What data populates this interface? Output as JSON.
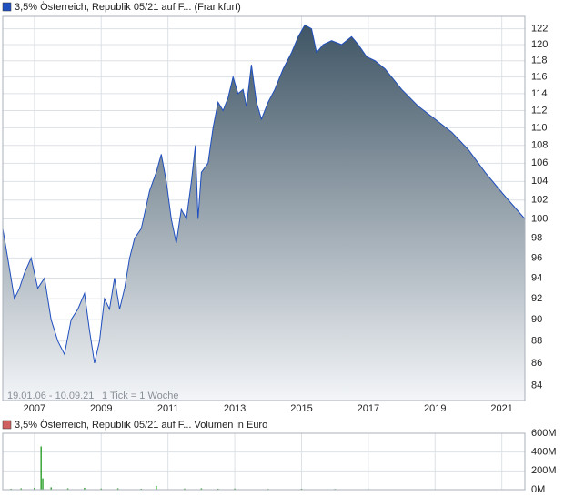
{
  "chart_data": [
    {
      "type": "area",
      "legend": "3,5% Österreich, Republik 05/21 auf F... (Frankfurt)",
      "footnote": "19.01.06 - 10.09.21",
      "tick_note": "1 Tick = 1 Woche",
      "log_scale": true,
      "grid": true,
      "xlim": [
        2006.05,
        2021.69
      ],
      "xticks": [
        2007,
        2009,
        2011,
        2013,
        2015,
        2017,
        2019,
        2021
      ],
      "ylim": [
        82.7,
        123.6
      ],
      "yticks": [
        84,
        86,
        88,
        90,
        92,
        94,
        96,
        98,
        100,
        102,
        104,
        106,
        108,
        110,
        112,
        114,
        116,
        118,
        120,
        122
      ],
      "x": [
        2006.05,
        2006.2,
        2006.4,
        2006.55,
        2006.7,
        2006.9,
        2007.1,
        2007.3,
        2007.5,
        2007.7,
        2007.9,
        2008.1,
        2008.3,
        2008.5,
        2008.65,
        2008.8,
        2008.95,
        2009.1,
        2009.25,
        2009.4,
        2009.55,
        2009.7,
        2009.85,
        2010.0,
        2010.2,
        2010.45,
        2010.65,
        2010.8,
        2010.95,
        2011.1,
        2011.25,
        2011.4,
        2011.55,
        2011.7,
        2011.82,
        2011.9,
        2012.0,
        2012.2,
        2012.35,
        2012.5,
        2012.65,
        2012.8,
        2012.95,
        2013.1,
        2013.25,
        2013.35,
        2013.5,
        2013.65,
        2013.8,
        2014.0,
        2014.2,
        2014.45,
        2014.7,
        2014.9,
        2015.1,
        2015.3,
        2015.45,
        2015.65,
        2015.9,
        2016.2,
        2016.5,
        2016.7,
        2016.95,
        2017.2,
        2017.5,
        2017.8,
        2018.0,
        2018.5,
        2019.0,
        2019.5,
        2020.0,
        2020.5,
        2021.0,
        2021.69
      ],
      "series": [
        {
          "name": "3,5% Österreich, Republik 05/21 auf F...",
          "color": "#1f4fbf",
          "values": [
            99,
            96,
            92,
            93,
            94.5,
            96,
            93,
            94,
            90,
            88,
            86.8,
            90,
            91,
            92.5,
            89,
            86,
            88,
            92,
            91,
            94,
            91,
            93,
            96,
            98,
            99,
            103,
            105,
            107,
            104,
            100,
            97.5,
            101,
            100,
            104,
            108,
            100,
            105,
            106,
            110,
            113,
            112,
            113.5,
            116,
            114,
            114.5,
            112.5,
            117.5,
            113,
            111,
            113,
            114.5,
            117,
            119,
            121,
            122.5,
            122,
            119,
            120,
            120.5,
            120,
            121,
            120,
            118.5,
            118,
            117,
            115.5,
            114.5,
            112.5,
            111,
            109.5,
            107.5,
            105,
            102.8,
            100
          ]
        }
      ]
    },
    {
      "type": "bar",
      "legend": "3,5% Österreich, Republik 05/21 auf F...",
      "unit_label": "Volumen in Euro",
      "grid": true,
      "xlim": [
        2006.05,
        2021.69
      ],
      "xticks": [
        2007,
        2009,
        2011,
        2013,
        2015,
        2017,
        2019,
        2021
      ],
      "ylim": [
        0,
        600000000
      ],
      "yticks": [
        {
          "value": 0,
          "label": "0M"
        },
        {
          "value": 200000000,
          "label": "200M"
        },
        {
          "value": 400000000,
          "label": "400M"
        },
        {
          "value": 600000000,
          "label": "600M"
        }
      ],
      "x": [
        2006.3,
        2006.6,
        2007.0,
        2007.2,
        2007.25,
        2007.5,
        2008.0,
        2008.5,
        2009.0,
        2009.5,
        2010.2,
        2010.65,
        2011.5,
        2012.0,
        2012.5,
        2013.0,
        2014.0,
        2015.0,
        2016.0,
        2017.0,
        2018.0,
        2019.0,
        2020.0,
        2021.0
      ],
      "series": [
        {
          "name": "Volumen",
          "color": "#3aa63a",
          "values": [
            10000000,
            15000000,
            20000000,
            460000000,
            120000000,
            25000000,
            15000000,
            20000000,
            12000000,
            15000000,
            10000000,
            40000000,
            12000000,
            15000000,
            10000000,
            12000000,
            8000000,
            10000000,
            8000000,
            6000000,
            5000000,
            5000000,
            4000000,
            4000000
          ]
        }
      ]
    }
  ]
}
